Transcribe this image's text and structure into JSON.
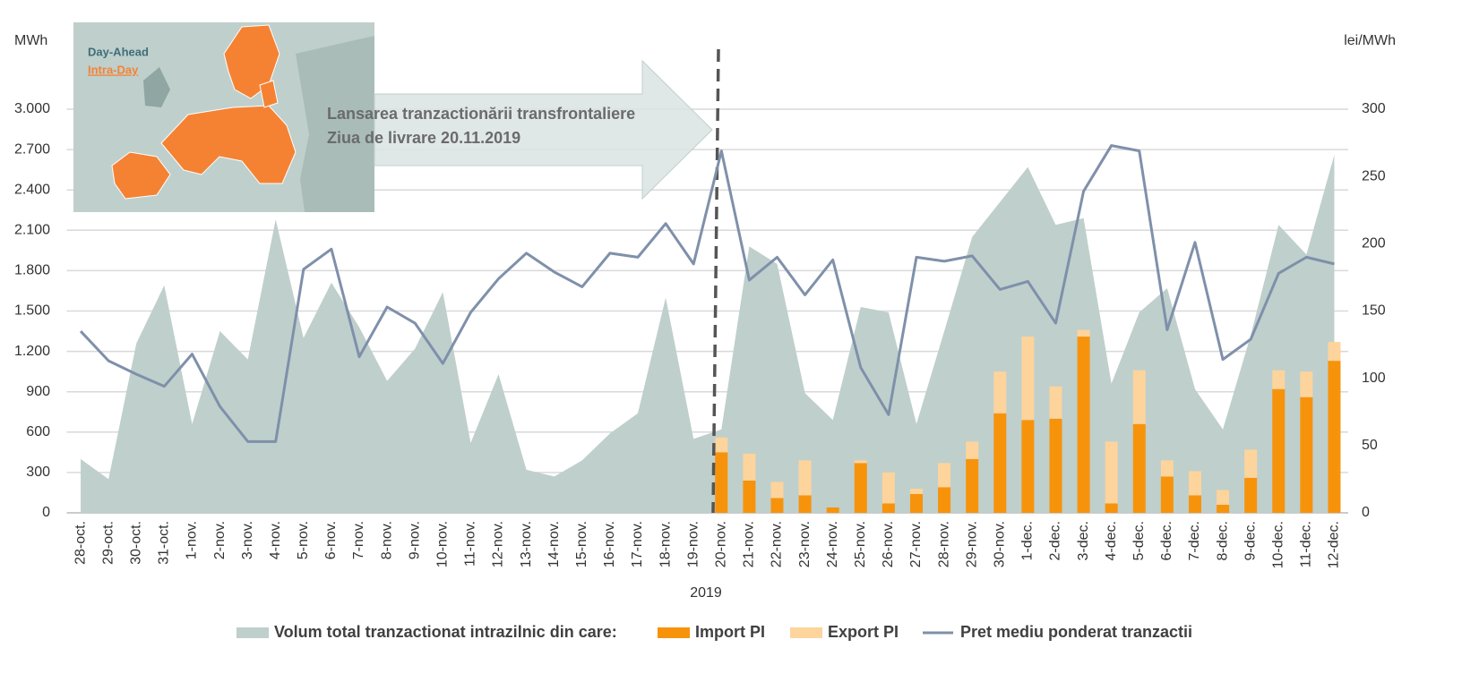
{
  "chart_data": {
    "type": "combo",
    "y_label": "MWh",
    "y2_label": "lei/MWh",
    "x_label": "2019",
    "annotations": [
      "Lansarea tranzactionării transfrontaliere",
      "Ziua de livrare 20.11.2019"
    ],
    "map_legend": [
      "Day-Ahead",
      "Intra-Day"
    ],
    "categories": [
      "28-oct.",
      "29-oct.",
      "30-oct.",
      "31-oct.",
      "1-nov.",
      "2-nov.",
      "3-nov.",
      "4-nov.",
      "5-nov.",
      "6-nov.",
      "7-nov.",
      "8-nov.",
      "9-nov.",
      "10-nov.",
      "11-nov.",
      "12-nov.",
      "13-nov.",
      "14-nov.",
      "15-nov.",
      "16-nov.",
      "17-nov.",
      "18-nov.",
      "19-nov.",
      "20-nov.",
      "21-nov.",
      "22-nov.",
      "23-nov.",
      "24-nov.",
      "25-nov.",
      "26-nov.",
      "27-nov.",
      "28-nov.",
      "29-nov.",
      "30-nov.",
      "1-dec.",
      "2-dec.",
      "3-dec.",
      "4-dec.",
      "5-dec.",
      "6-dec.",
      "7-dec.",
      "8-dec.",
      "9-dec.",
      "10-dec.",
      "11-dec.",
      "12-dec."
    ],
    "series": [
      {
        "name": "Volum total tranzactionat intrazilnic din care:",
        "type": "area",
        "color": "#bfcfcc",
        "values": [
          400,
          250,
          1260,
          1690,
          660,
          1350,
          1140,
          2180,
          1300,
          1710,
          1380,
          980,
          1220,
          1640,
          520,
          1030,
          320,
          270,
          390,
          590,
          740,
          1600,
          550,
          620,
          1980,
          1850,
          890,
          690,
          1530,
          1490,
          660,
          1350,
          2050,
          2310,
          2570,
          2140,
          2190,
          960,
          1490,
          1670,
          920,
          620,
          1320,
          2140,
          1920,
          2660
        ]
      },
      {
        "name": "Import PI",
        "type": "bar",
        "color": "#f7930b",
        "values": [
          null,
          null,
          null,
          null,
          null,
          null,
          null,
          null,
          null,
          null,
          null,
          null,
          null,
          null,
          null,
          null,
          null,
          null,
          null,
          null,
          null,
          null,
          null,
          450,
          240,
          110,
          130,
          40,
          370,
          70,
          140,
          190,
          400,
          740,
          690,
          700,
          1310,
          70,
          660,
          270,
          130,
          60,
          260,
          920,
          860,
          1130
        ]
      },
      {
        "name": "Export PI",
        "type": "bar",
        "color": "#fdd49c",
        "values": [
          null,
          null,
          null,
          null,
          null,
          null,
          null,
          null,
          null,
          null,
          null,
          null,
          null,
          null,
          null,
          null,
          null,
          null,
          null,
          null,
          null,
          null,
          null,
          110,
          200,
          120,
          260,
          0,
          20,
          230,
          40,
          180,
          130,
          310,
          620,
          240,
          50,
          460,
          400,
          120,
          180,
          110,
          210,
          140,
          190,
          140
        ]
      },
      {
        "name": "Pret mediu ponderat tranzactii",
        "type": "line",
        "axis": "y2",
        "color": "#7f90aa",
        "values": [
          135,
          113,
          103,
          94,
          118,
          79,
          53,
          53,
          181,
          196,
          116,
          153,
          141,
          111,
          149,
          174,
          193,
          179,
          168,
          193,
          190,
          215,
          185,
          269,
          173,
          190,
          162,
          188,
          108,
          73,
          190,
          187,
          191,
          166,
          172,
          141,
          239,
          273,
          269,
          136,
          201,
          114,
          129,
          178,
          190,
          185
        ]
      }
    ],
    "ylim": [
      0,
      3000
    ],
    "yticks": [
      0,
      300,
      600,
      900,
      {
        "value": 1200,
        "label": "1.200"
      },
      {
        "value": 1500,
        "label": "1.500"
      },
      {
        "value": 1800,
        "label": "1.800"
      },
      {
        "value": 2100,
        "label": "2.100"
      },
      {
        "value": 2400,
        "label": "2.400"
      },
      {
        "value": 2700,
        "label": "2.700"
      },
      {
        "value": 3000,
        "label": "3.000"
      }
    ],
    "y2lim": [
      0,
      300
    ],
    "y2ticks": [
      0,
      50,
      100,
      150,
      200,
      250,
      300
    ],
    "grid": true,
    "legend": "bottom"
  }
}
